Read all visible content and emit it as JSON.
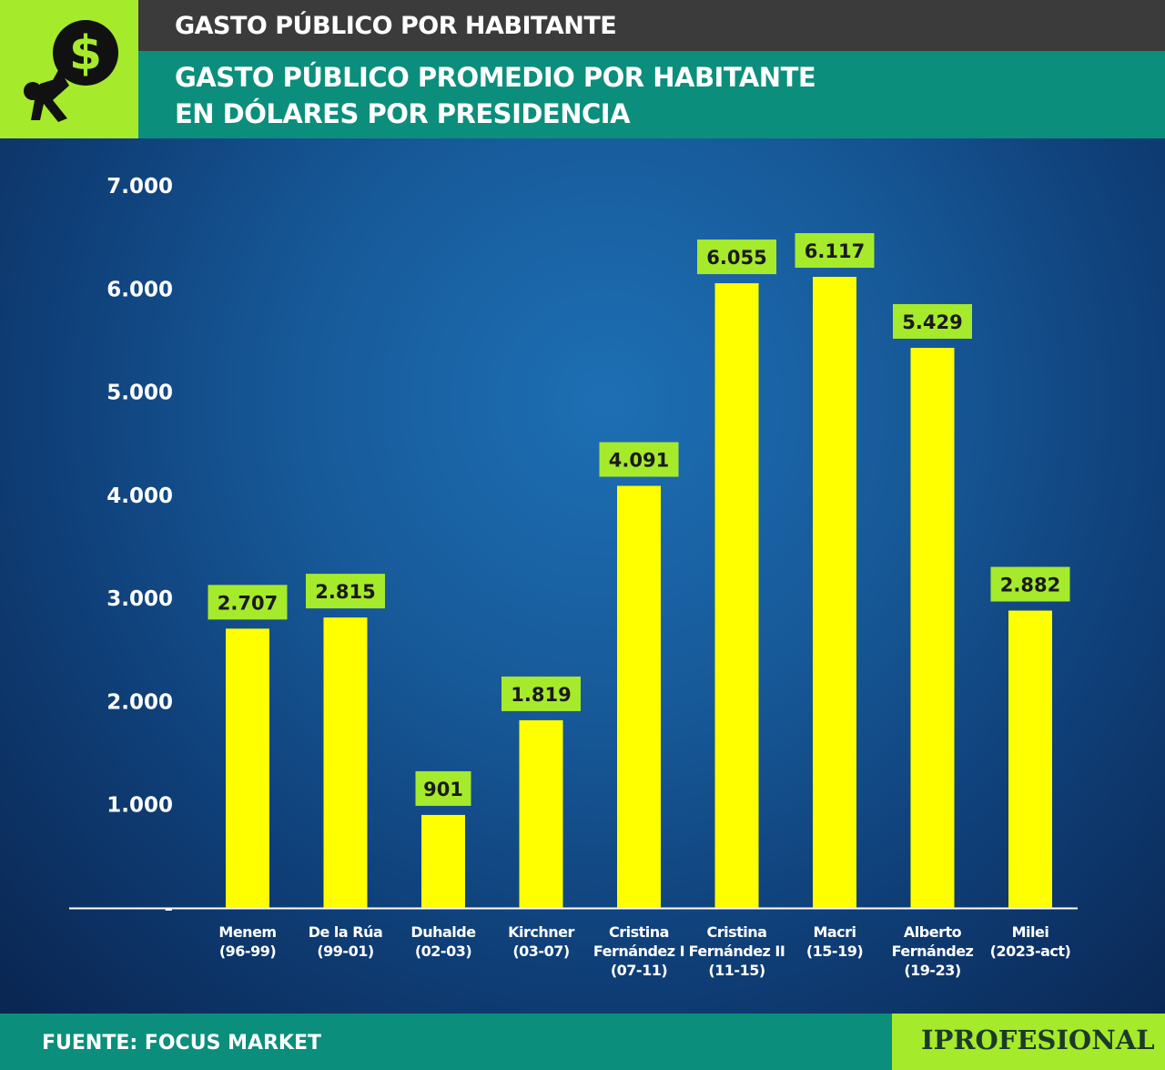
{
  "header": {
    "title": "GASTO PÚBLICO POR HABITANTE",
    "subtitle_line1": "GASTO PÚBLICO PROMEDIO POR HABITANTE",
    "subtitle_line2": "EN DÓLARES POR PRESIDENCIA",
    "logo_icon": "person-carrying-dollar-icon"
  },
  "footer": {
    "source": "FUENTE: FOCUS MARKET",
    "brand": "IPROFESIONAL"
  },
  "colors": {
    "bar": "#ffff00",
    "value_label_bg": "#a6ea2c",
    "header_dark": "#3b3b3b",
    "header_teal": "#0b8f7c",
    "accent_green": "#a6ea2c"
  },
  "chart_data": {
    "type": "bar",
    "categories": [
      [
        "Menem",
        "(96-99)"
      ],
      [
        "De la Rúa",
        "(99-01)"
      ],
      [
        "Duhalde",
        "(02-03)"
      ],
      [
        "Kirchner",
        "(03-07)"
      ],
      [
        "Cristina",
        "Fernández I",
        "(07-11)"
      ],
      [
        "Cristina",
        "Fernández II",
        "(11-15)"
      ],
      [
        "Macri",
        "(15-19)"
      ],
      [
        "Alberto",
        "Fernández",
        "(19-23)"
      ],
      [
        "Milei",
        "(2023-act)"
      ]
    ],
    "values": [
      2707,
      2815,
      901,
      1819,
      4091,
      6055,
      6117,
      5429,
      2882
    ],
    "value_labels": [
      "2.707",
      "2.815",
      "901",
      "1.819",
      "4.091",
      "6.055",
      "6.117",
      "5.429",
      "2.882"
    ],
    "yticks": [
      0,
      1000,
      2000,
      3000,
      4000,
      5000,
      6000,
      7000
    ],
    "ytick_labels": [
      "-",
      "1.000",
      "2.000",
      "3.000",
      "4.000",
      "5.000",
      "6.000",
      "7.000"
    ],
    "ylim": [
      0,
      7000
    ],
    "grid": false
  }
}
